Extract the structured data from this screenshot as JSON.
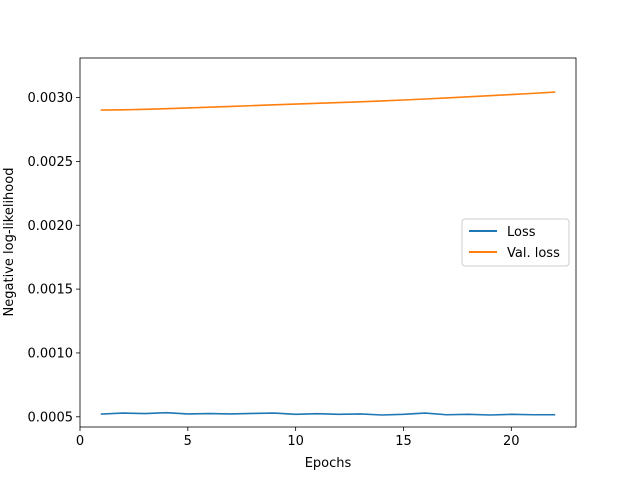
{
  "chart_data": {
    "type": "line",
    "title": "",
    "xlabel": "Epochs",
    "ylabel": "Negative log-likelihood",
    "xlim": [
      0,
      23
    ],
    "ylim": [
      0.00042,
      0.00331
    ],
    "xticks": [
      0,
      5,
      10,
      15,
      20
    ],
    "yticks": [
      0.0005,
      0.001,
      0.0015,
      0.002,
      0.0025,
      0.003
    ],
    "xtick_labels": [
      "0",
      "5",
      "10",
      "15",
      "20"
    ],
    "ytick_labels": [
      "0.0005",
      "0.0010",
      "0.0015",
      "0.0020",
      "0.0025",
      "0.0030"
    ],
    "grid": false,
    "legend_position": "center-right",
    "x": [
      1,
      2,
      3,
      4,
      5,
      6,
      7,
      8,
      9,
      10,
      11,
      12,
      13,
      14,
      15,
      16,
      17,
      18,
      19,
      20,
      21,
      22
    ],
    "series": [
      {
        "name": "Loss",
        "color": "#1f77b4",
        "values": [
          0.000521,
          0.000529,
          0.000525,
          0.000532,
          0.000522,
          0.000525,
          0.000522,
          0.000526,
          0.000529,
          0.000519,
          0.000524,
          0.000519,
          0.000522,
          0.000514,
          0.000519,
          0.000529,
          0.000516,
          0.000519,
          0.000514,
          0.000519,
          0.000516,
          0.000516
        ]
      },
      {
        "name": "Val. loss",
        "color": "#ff7f0e",
        "values": [
          0.002902,
          0.002904,
          0.002908,
          0.002913,
          0.002919,
          0.002925,
          0.002931,
          0.002937,
          0.002943,
          0.002949,
          0.002955,
          0.002961,
          0.002967,
          0.002974,
          0.002981,
          0.002989,
          0.002997,
          0.003006,
          0.003015,
          0.003024,
          0.003033,
          0.003043
        ]
      }
    ]
  }
}
